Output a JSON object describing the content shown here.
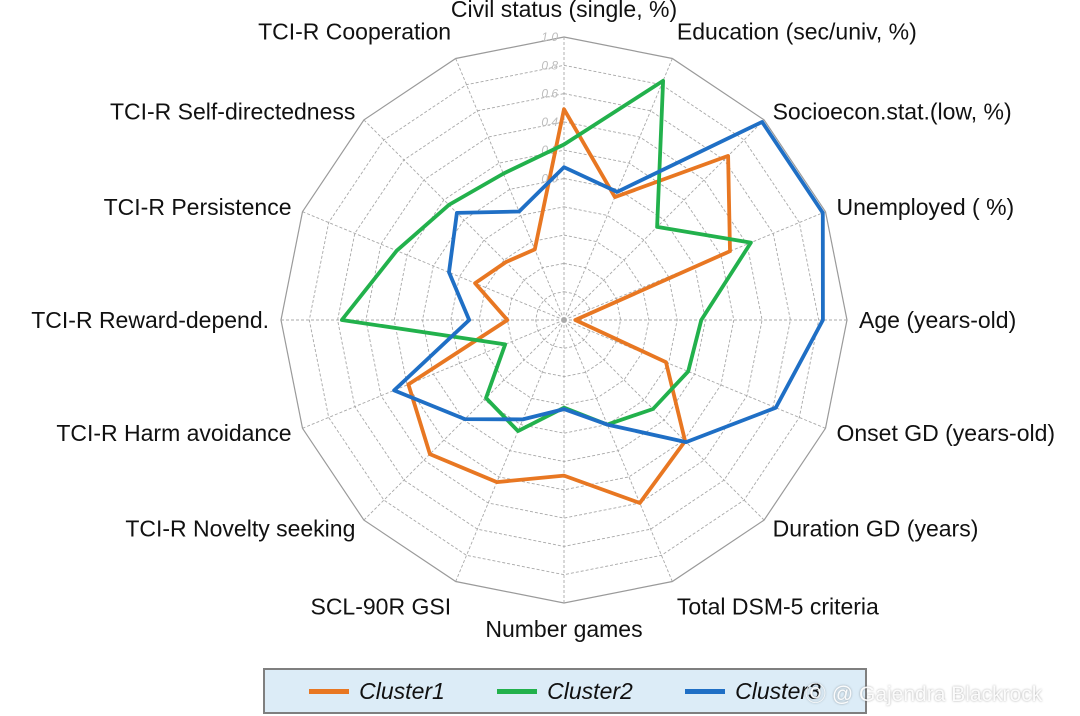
{
  "chart_data": {
    "type": "radar",
    "title": "",
    "axes": [
      "Civil status (single, %)",
      "Education (sec/univ, %)",
      "Socioecon.stat.(low, %)",
      "Unemployed ( %)",
      "Age (years-old)",
      "Onset GD (years-old)",
      "Duration GD (years)",
      "Total DSM-5 criteria",
      "Number games",
      "SCL-90R GSI",
      "TCI-R Novelty seeking",
      "TCI-R Harm avoidance",
      "TCI-R Reward-depend.",
      "TCI-R Persistence",
      "TCI-R Self-directedness",
      "TCI-R Cooperation"
    ],
    "tick_labels": [
      "0.0",
      "0.2",
      "0.4",
      "0.6",
      "0.8",
      "1.0"
    ],
    "rlim": [
      -1.0,
      1.0
    ],
    "series": [
      {
        "name": "Cluster1",
        "color": "#e87722",
        "values": [
          0.49,
          -0.06,
          0.64,
          0.27,
          -0.92,
          -0.22,
          0.21,
          0.4,
          0.1,
          0.24,
          0.34,
          0.19,
          -0.6,
          -0.32,
          -0.42,
          -0.46
        ]
      },
      {
        "name": "Cluster2",
        "color": "#22b14c",
        "values": [
          0.24,
          0.83,
          -0.07,
          0.43,
          -0.03,
          -0.05,
          -0.11,
          -0.2,
          -0.38,
          -0.15,
          -0.22,
          -0.55,
          0.57,
          0.28,
          0.15,
          0.12
        ]
      },
      {
        "name": "Cluster3",
        "color": "#1f6fc5",
        "values": [
          0.08,
          -0.02,
          0.98,
          0.98,
          0.83,
          0.62,
          0.22,
          -0.2,
          -0.37,
          -0.24,
          -0.01,
          0.3,
          -0.33,
          -0.12,
          0.07,
          -0.17
        ]
      }
    ]
  },
  "watermark": "Ⓞ @ Gajendra Blackrock"
}
